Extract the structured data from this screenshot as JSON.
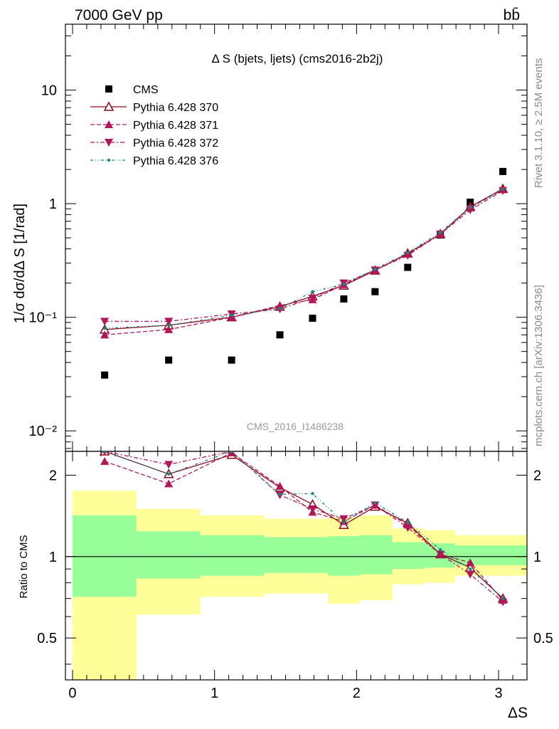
{
  "header": {
    "energy_label": "7000 GeV pp",
    "process_label": "bb̄",
    "side_rivet": "Rivet 3.1.10, ≥ 2.5M events",
    "side_mcplots": "mcplots.cern.ch [arXiv:1306.3436]",
    "watermark": "CMS_2016_I1486238"
  },
  "chart_data": [
    {
      "type": "scatter",
      "panel": "main",
      "title": "Δ S (bjets, ljets) (cms2016-2b2j)",
      "ylabel": "1/σ dσ/dΔ S [1/rad]",
      "xlabel": "",
      "xlim": [
        -0.05,
        3.2
      ],
      "ylim": [
        0.0066,
        38
      ],
      "yscale": "log",
      "ytick_labels": [
        "10⁻²",
        "10⁻¹",
        "1",
        "10"
      ],
      "ytick_values": [
        0.01,
        0.1,
        1,
        10
      ],
      "x": [
        0.226,
        0.677,
        1.12,
        1.46,
        1.69,
        1.91,
        2.13,
        2.36,
        2.59,
        2.8,
        3.03
      ],
      "series": [
        {
          "name": "CMS",
          "style": "data",
          "color": "#000000",
          "marker": "square",
          "values": [
            0.031,
            0.042,
            0.042,
            0.07,
            0.098,
            0.145,
            0.168,
            0.275,
            0.53,
            1.03,
            1.92
          ]
        },
        {
          "name": "Pythia 6.428 370",
          "style": "solid",
          "color": "#8b0a1a",
          "marker": "triangle-open",
          "values": [
            0.078,
            0.085,
            0.1,
            0.124,
            0.153,
            0.19,
            0.258,
            0.365,
            0.54,
            0.94,
            1.35
          ]
        },
        {
          "name": "Pythia 6.428 371",
          "style": "dashed",
          "color": "#b0185a",
          "marker": "triangle-up",
          "values": [
            0.07,
            0.078,
            0.1,
            0.127,
            0.143,
            0.194,
            0.26,
            0.36,
            0.54,
            0.92,
            1.33
          ]
        },
        {
          "name": "Pythia 6.428 372",
          "style": "dashdot",
          "color": "#b0185a",
          "marker": "triangle-down",
          "values": [
            0.092,
            0.092,
            0.107,
            0.118,
            0.147,
            0.2,
            0.26,
            0.35,
            0.54,
            0.88,
            1.3
          ]
        },
        {
          "name": "Pythia 6.428 376",
          "style": "dashdotdot",
          "color": "#19877e",
          "marker": "dot",
          "values": [
            0.08,
            0.085,
            0.104,
            0.119,
            0.168,
            0.195,
            0.265,
            0.37,
            0.56,
            0.93,
            1.34
          ]
        }
      ],
      "legend": "top-left"
    },
    {
      "type": "line",
      "panel": "ratio",
      "ylabel": "Ratio to CMS",
      "xlabel": "ΔS",
      "xlim": [
        -0.05,
        3.2
      ],
      "ylim": [
        0.35,
        2.45
      ],
      "yscale": "log",
      "ytick_labels": [
        "0.5",
        "1",
        "2"
      ],
      "ytick_values": [
        0.5,
        1,
        2
      ],
      "xtick_labels": [
        "0",
        "1",
        "2",
        "3"
      ],
      "xtick_values": [
        0,
        1,
        2,
        3
      ],
      "reference": 1,
      "bins": [
        {
          "x0": 0.0,
          "x1": 0.45,
          "green": [
            0.71,
            1.42
          ],
          "yellow": [
            0.3,
            1.75
          ]
        },
        {
          "x0": 0.45,
          "x1": 0.9,
          "green": [
            0.83,
            1.24
          ],
          "yellow": [
            0.61,
            1.5
          ]
        },
        {
          "x0": 0.9,
          "x1": 1.35,
          "green": [
            0.85,
            1.2
          ],
          "yellow": [
            0.71,
            1.42
          ]
        },
        {
          "x0": 1.35,
          "x1": 1.8,
          "green": [
            0.87,
            1.18
          ],
          "yellow": [
            0.73,
            1.38
          ]
        },
        {
          "x0": 1.8,
          "x1": 2.02,
          "green": [
            0.85,
            1.19
          ],
          "yellow": [
            0.67,
            1.4
          ]
        },
        {
          "x0": 2.02,
          "x1": 2.25,
          "green": [
            0.86,
            1.2
          ],
          "yellow": [
            0.69,
            1.42
          ]
        },
        {
          "x0": 2.25,
          "x1": 2.47,
          "green": [
            0.9,
            1.13
          ],
          "yellow": [
            0.79,
            1.27
          ]
        },
        {
          "x0": 2.47,
          "x1": 2.69,
          "green": [
            0.91,
            1.12
          ],
          "yellow": [
            0.8,
            1.25
          ]
        },
        {
          "x0": 2.69,
          "x1": 3.2,
          "green": [
            0.93,
            1.1
          ],
          "yellow": [
            0.85,
            1.2
          ]
        }
      ],
      "x": [
        0.226,
        0.677,
        1.12,
        1.46,
        1.69,
        1.91,
        2.13,
        2.36,
        2.59,
        2.8,
        3.03
      ],
      "series": [
        {
          "name": "Pythia 6.428 370",
          "style": "solid",
          "color": "#8b0a1a",
          "marker": "triangle-open",
          "values": [
            2.5,
            2.02,
            2.38,
            1.8,
            1.56,
            1.31,
            1.53,
            1.33,
            1.02,
            0.91,
            0.7
          ]
        },
        {
          "name": "Pythia 6.428 371",
          "style": "dashed",
          "color": "#b0185a",
          "marker": "triangle-up",
          "values": [
            2.25,
            1.86,
            2.42,
            1.82,
            1.46,
            1.35,
            1.55,
            1.31,
            1.02,
            0.95,
            0.69
          ]
        },
        {
          "name": "Pythia 6.428 372",
          "style": "dashdot",
          "color": "#b0185a",
          "marker": "triangle-down",
          "values": [
            2.97,
            2.19,
            2.55,
            1.69,
            1.5,
            1.38,
            1.55,
            1.28,
            1.02,
            0.86,
            0.68
          ]
        },
        {
          "name": "Pythia 6.428 376",
          "style": "dashdotdot",
          "color": "#19877e",
          "marker": "dot",
          "values": [
            2.58,
            2.02,
            2.48,
            1.7,
            1.71,
            1.34,
            1.58,
            1.34,
            1.06,
            0.9,
            0.7
          ]
        }
      ]
    }
  ]
}
